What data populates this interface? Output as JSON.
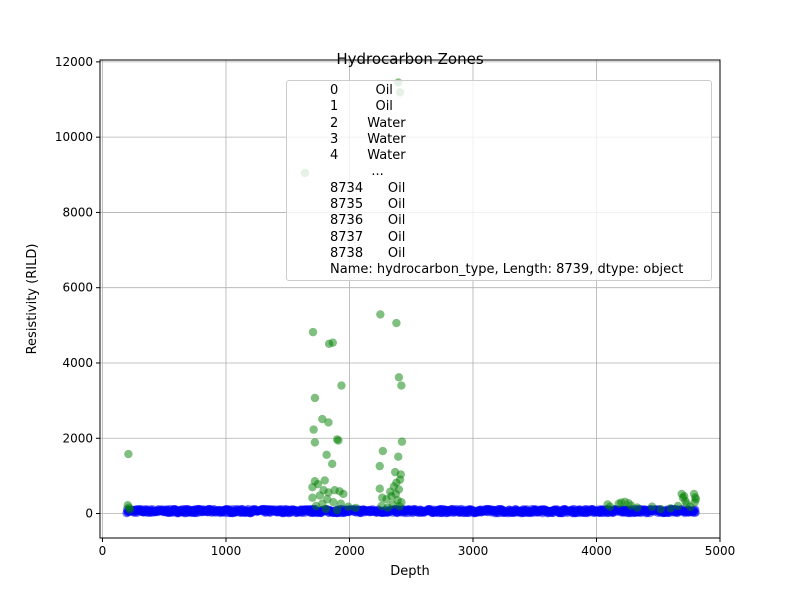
{
  "chart_data": {
    "type": "scatter",
    "title": "Hydrocarbon Zones",
    "xlabel": "Depth",
    "ylabel": "Resistivity (RILD)",
    "xlim": [
      -20,
      5000
    ],
    "ylim": [
      -650,
      12050
    ],
    "xticks": [
      0,
      1000,
      2000,
      3000,
      4000,
      5000
    ],
    "yticks": [
      0,
      2000,
      4000,
      6000,
      8000,
      10000,
      12000
    ],
    "grid": true,
    "legend_text": "0         Oil\n1         Oil\n2       Water\n3       Water\n4       Water\n          ...\n8734      Oil\n8735      Oil\n8736      Oil\n8737      Oil\n8738      Oil\nName: hydrocarbon_type, Length: 8739, dtype: object",
    "legend_location": "upper right",
    "series": [
      {
        "name": "Oil",
        "color": "#008000",
        "alpha": 0.5,
        "points": [
          [
            210,
            1580
          ],
          [
            205,
            220
          ],
          [
            215,
            160
          ],
          [
            222,
            110
          ],
          [
            1640,
            9050
          ],
          [
            1705,
            4820
          ],
          [
            1835,
            4510
          ],
          [
            1865,
            4540
          ],
          [
            1720,
            3070
          ],
          [
            1780,
            2510
          ],
          [
            1830,
            2420
          ],
          [
            1710,
            2230
          ],
          [
            1720,
            1890
          ],
          [
            1815,
            1560
          ],
          [
            1860,
            1320
          ],
          [
            1900,
            1970
          ],
          [
            1910,
            1940
          ],
          [
            1935,
            3400
          ],
          [
            1720,
            860
          ],
          [
            1700,
            700
          ],
          [
            1745,
            780
          ],
          [
            1790,
            620
          ],
          [
            1800,
            880
          ],
          [
            1830,
            560
          ],
          [
            1880,
            620
          ],
          [
            1920,
            590
          ],
          [
            1950,
            520
          ],
          [
            1700,
            420
          ],
          [
            1760,
            480
          ],
          [
            1820,
            380
          ],
          [
            1870,
            300
          ],
          [
            1930,
            260
          ],
          [
            1990,
            180
          ],
          [
            2050,
            150
          ],
          [
            1730,
            200
          ],
          [
            1780,
            260
          ],
          [
            1810,
            120
          ],
          [
            1900,
            90
          ],
          [
            2250,
            5290
          ],
          [
            2380,
            5060
          ],
          [
            2410,
            11190
          ],
          [
            2395,
            11450
          ],
          [
            2400,
            3620
          ],
          [
            2420,
            3400
          ],
          [
            2425,
            1910
          ],
          [
            2270,
            1660
          ],
          [
            2395,
            1510
          ],
          [
            2245,
            1260
          ],
          [
            2370,
            1100
          ],
          [
            2415,
            1040
          ],
          [
            2245,
            660
          ],
          [
            2330,
            580
          ],
          [
            2360,
            720
          ],
          [
            2380,
            820
          ],
          [
            2400,
            640
          ],
          [
            2410,
            900
          ],
          [
            2265,
            420
          ],
          [
            2300,
            380
          ],
          [
            2340,
            460
          ],
          [
            2375,
            520
          ],
          [
            2390,
            350
          ],
          [
            2420,
            300
          ],
          [
            2260,
            200
          ],
          [
            2310,
            160
          ],
          [
            2350,
            240
          ],
          [
            2405,
            190
          ],
          [
            4090,
            240
          ],
          [
            4110,
            180
          ],
          [
            4180,
            260
          ],
          [
            4200,
            290
          ],
          [
            4230,
            310
          ],
          [
            4260,
            270
          ],
          [
            4280,
            210
          ],
          [
            4330,
            160
          ],
          [
            4450,
            180
          ],
          [
            4520,
            120
          ],
          [
            4600,
            140
          ],
          [
            4660,
            200
          ],
          [
            4690,
            520
          ],
          [
            4700,
            420
          ],
          [
            4710,
            460
          ],
          [
            4720,
            330
          ],
          [
            4730,
            260
          ],
          [
            4760,
            180
          ],
          [
            4790,
            520
          ],
          [
            4800,
            430
          ],
          [
            4805,
            380
          ],
          [
            4795,
            300
          ]
        ]
      },
      {
        "name": "Water",
        "color": "#0000ff",
        "alpha": 0.5,
        "x_start": 195,
        "x_end": 4805,
        "resistivity_range": [
          10,
          120
        ]
      }
    ]
  }
}
